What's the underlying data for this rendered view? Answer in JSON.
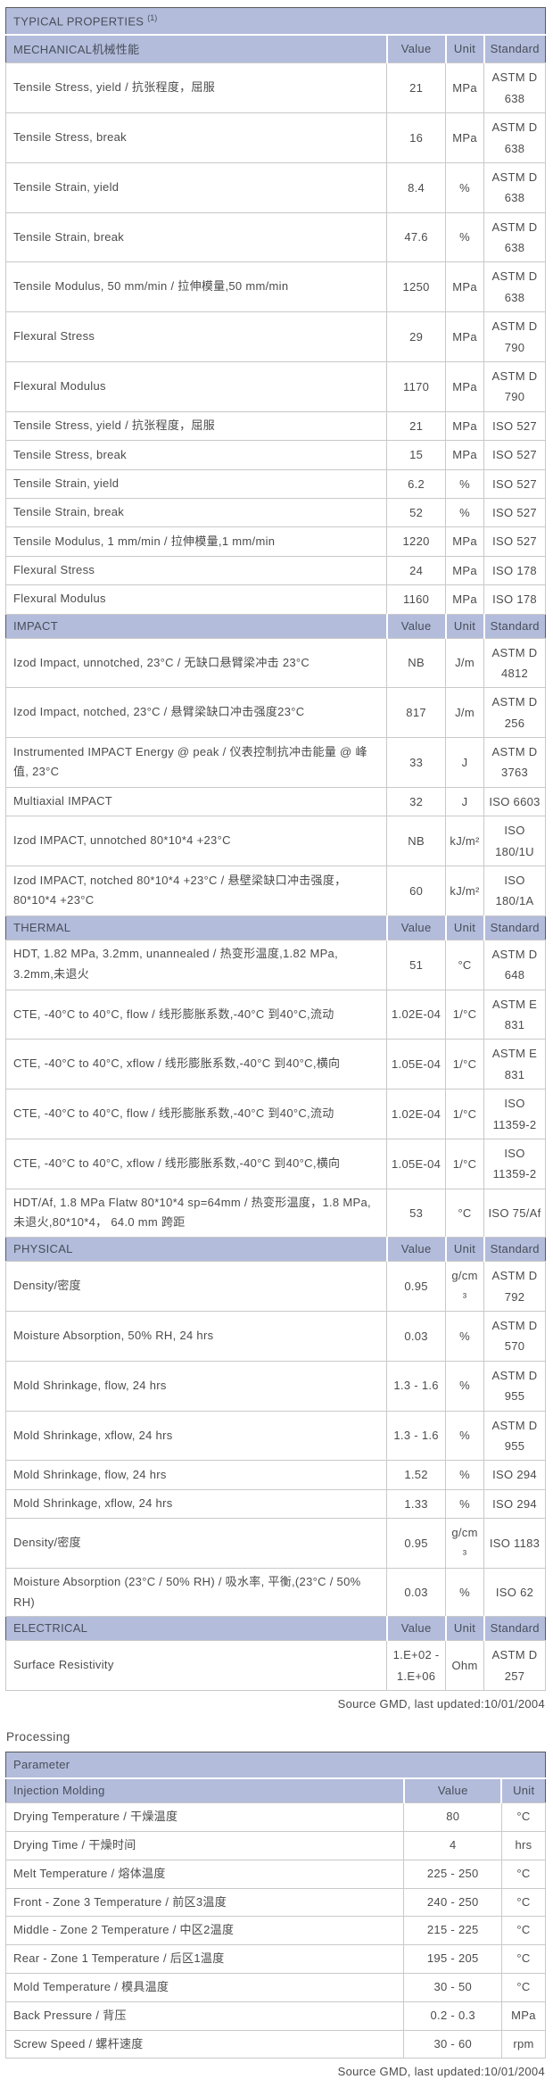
{
  "colors": {
    "header_background": "#b3bcdb",
    "header_text": "#474e5a",
    "body_text": "#4b4b4b",
    "row_border": "#c9c9c9",
    "table_border": "#5a5a5a",
    "page_background": "#ffffff"
  },
  "typical_properties": {
    "title": "TYPICAL PROPERTIES",
    "footnote_marker": "(1)",
    "columns": [
      "Value",
      "Unit",
      "Standard"
    ],
    "sections": [
      {
        "id": "mechanical",
        "label": "MECHANICAL机械性能",
        "rows": [
          {
            "property": "Tensile Stress, yield / 抗张程度，屈服",
            "value": "21",
            "unit": "MPa",
            "standard": "ASTM D 638"
          },
          {
            "property": "Tensile Stress, break",
            "value": "16",
            "unit": "MPa",
            "standard": "ASTM D 638"
          },
          {
            "property": "Tensile Strain, yield",
            "value": "8.4",
            "unit": "%",
            "standard": "ASTM D 638"
          },
          {
            "property": "Tensile Strain, break",
            "value": "47.6",
            "unit": "%",
            "standard": "ASTM D 638"
          },
          {
            "property": "Tensile Modulus, 50 mm/min / 拉伸模量,50 mm/min",
            "value": "1250",
            "unit": "MPa",
            "standard": "ASTM D 638"
          },
          {
            "property": "Flexural Stress",
            "value": "29",
            "unit": "MPa",
            "standard": "ASTM D 790"
          },
          {
            "property": "Flexural Modulus",
            "value": "1170",
            "unit": "MPa",
            "standard": "ASTM D 790"
          },
          {
            "property": "Tensile Stress, yield / 抗张程度，屈服",
            "value": "21",
            "unit": "MPa",
            "standard": "ISO 527"
          },
          {
            "property": "Tensile Stress, break",
            "value": "15",
            "unit": "MPa",
            "standard": "ISO 527"
          },
          {
            "property": "Tensile Strain, yield",
            "value": "6.2",
            "unit": "%",
            "standard": "ISO 527"
          },
          {
            "property": "Tensile Strain, break",
            "value": "52",
            "unit": "%",
            "standard": "ISO 527"
          },
          {
            "property": "Tensile Modulus, 1 mm/min / 拉伸模量,1 mm/min",
            "value": "1220",
            "unit": "MPa",
            "standard": "ISO 527"
          },
          {
            "property": "Flexural Stress",
            "value": "24",
            "unit": "MPa",
            "standard": "ISO 178"
          },
          {
            "property": "Flexural Modulus",
            "value": "1160",
            "unit": "MPa",
            "standard": "ISO 178"
          }
        ]
      },
      {
        "id": "impact",
        "label": "IMPACT",
        "rows": [
          {
            "property": "Izod Impact, unnotched, 23°C / 无缺口悬臂梁冲击 23°C",
            "value": "NB",
            "unit": "J/m",
            "standard": "ASTM D 4812"
          },
          {
            "property": "Izod Impact, notched, 23°C / 悬臂梁缺口冲击强度23°C",
            "value": "817",
            "unit": "J/m",
            "standard": "ASTM D 256"
          },
          {
            "property": "Instrumented IMPACT Energy @ peak / 仪表控制抗冲击能量 @ 峰值, 23°C",
            "value": "33",
            "unit": "J",
            "standard": "ASTM D 3763"
          },
          {
            "property": "Multiaxial IMPACT",
            "value": "32",
            "unit": "J",
            "standard": "ISO 6603"
          },
          {
            "property": "Izod IMPACT, unnotched 80*10*4 +23°C",
            "value": "NB",
            "unit": "kJ/m²",
            "standard": "ISO 180/1U"
          },
          {
            "property": "Izod IMPACT, notched 80*10*4 +23°C / 悬壁梁缺口冲击强度，80*10*4 +23°C",
            "value": "60",
            "unit": "kJ/m²",
            "standard": "ISO 180/1A"
          }
        ]
      },
      {
        "id": "thermal",
        "label": "THERMAL",
        "rows": [
          {
            "property": "HDT, 1.82 MPa, 3.2mm, unannealed / 热变形温度,1.82 MPa, 3.2mm,未退火",
            "value": "51",
            "unit": "°C",
            "standard": "ASTM D 648"
          },
          {
            "property": "CTE, -40°C to 40°C, flow / 线形膨胀系数,-40°C 到40°C,流动",
            "value": "1.02E-04",
            "unit": "1/°C",
            "standard": "ASTM E 831"
          },
          {
            "property": "CTE, -40°C to 40°C, xflow / 线形膨胀系数,-40°C 到40°C,横向",
            "value": "1.05E-04",
            "unit": "1/°C",
            "standard": "ASTM E 831"
          },
          {
            "property": "CTE, -40°C to 40°C, flow / 线形膨胀系数,-40°C 到40°C,流动",
            "value": "1.02E-04",
            "unit": "1/°C",
            "standard": "ISO 11359-2"
          },
          {
            "property": "CTE, -40°C to 40°C, xflow / 线形膨胀系数,-40°C 到40°C,横向",
            "value": "1.05E-04",
            "unit": "1/°C",
            "standard": "ISO 11359-2"
          },
          {
            "property": "HDT/Af, 1.8 MPa Flatw 80*10*4 sp=64mm / 热变形温度，1.8 MPa, 未退火,80*10*4，  64.0 mm 跨距",
            "value": "53",
            "unit": "°C",
            "standard": "ISO 75/Af"
          }
        ]
      },
      {
        "id": "physical",
        "label": "PHYSICAL",
        "rows": [
          {
            "property": "Density/密度",
            "value": "0.95",
            "unit": "g/cm³",
            "standard": "ASTM D 792"
          },
          {
            "property": "Moisture Absorption, 50% RH, 24 hrs",
            "value": "0.03",
            "unit": "%",
            "standard": "ASTM D 570"
          },
          {
            "property": "Mold Shrinkage, flow, 24 hrs",
            "value": "1.3 - 1.6",
            "unit": "%",
            "standard": "ASTM D 955"
          },
          {
            "property": "Mold Shrinkage, xflow, 24 hrs",
            "value": "1.3 - 1.6",
            "unit": "%",
            "standard": "ASTM D 955"
          },
          {
            "property": "Mold Shrinkage, flow, 24 hrs",
            "value": "1.52",
            "unit": "%",
            "standard": "ISO 294"
          },
          {
            "property": "Mold Shrinkage, xflow, 24 hrs",
            "value": "1.33",
            "unit": "%",
            "standard": "ISO 294"
          },
          {
            "property": "Density/密度",
            "value": "0.95",
            "unit": "g/cm³",
            "standard": "ISO 1183"
          },
          {
            "property": "Moisture Absorption (23°C / 50% RH) / 吸水率, 平衡,(23°C / 50% RH)",
            "value": "0.03",
            "unit": "%",
            "standard": "ISO 62"
          }
        ]
      },
      {
        "id": "electrical",
        "label": "ELECTRICAL",
        "rows": [
          {
            "property": "Surface Resistivity",
            "value": "1.E+02 - 1.E+06",
            "unit": "Ohm",
            "standard": "ASTM D 257"
          }
        ]
      }
    ],
    "source": "Source GMD, last updated:10/01/2004"
  },
  "processing": {
    "heading": "Processing",
    "table_title": "Parameter",
    "subheader": {
      "label": "Injection Molding",
      "columns": [
        "Value",
        "Unit"
      ]
    },
    "rows": [
      {
        "property": "Drying Temperature / 干燥温度",
        "value": "80",
        "unit": "°C"
      },
      {
        "property": "Drying Time / 干燥时间",
        "value": "4",
        "unit": "hrs"
      },
      {
        "property": "Melt Temperature / 熔体温度",
        "value": "225 - 250",
        "unit": "°C"
      },
      {
        "property": "Front - Zone 3 Temperature / 前区3温度",
        "value": "240 - 250",
        "unit": "°C"
      },
      {
        "property": "Middle - Zone 2 Temperature / 中区2温度",
        "value": "215 - 225",
        "unit": "°C"
      },
      {
        "property": "Rear - Zone 1 Temperature / 后区1温度",
        "value": "195 - 205",
        "unit": "°C"
      },
      {
        "property": "Mold Temperature / 模具温度",
        "value": "30 - 50",
        "unit": "°C"
      },
      {
        "property": "Back Pressure / 背压",
        "value": "0.2 - 0.3",
        "unit": "MPa"
      },
      {
        "property": "Screw Speed / 螺杆速度",
        "value": "30 - 60",
        "unit": "rpm"
      }
    ],
    "source": "Source GMD, last updated:10/01/2004"
  }
}
